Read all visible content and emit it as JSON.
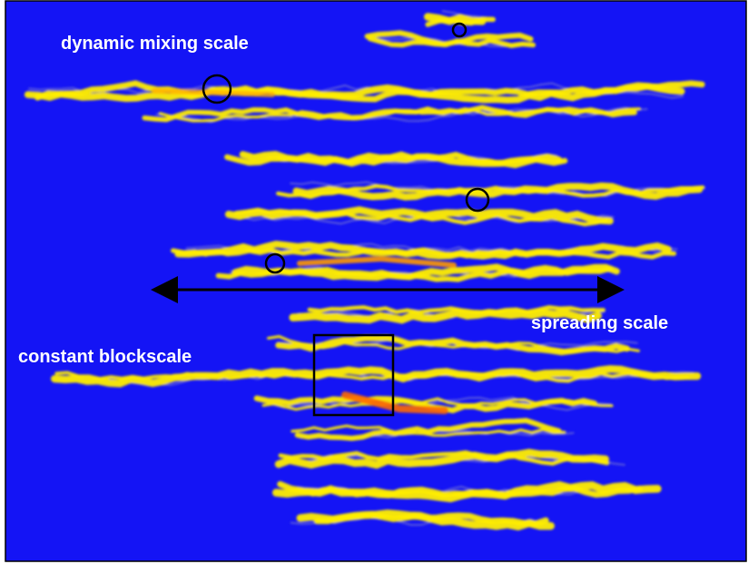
{
  "annotations": {
    "dynamic_mixing": "dynamic mixing scale",
    "spreading": "spreading scale",
    "blockscale": "constant blockscale"
  }
}
